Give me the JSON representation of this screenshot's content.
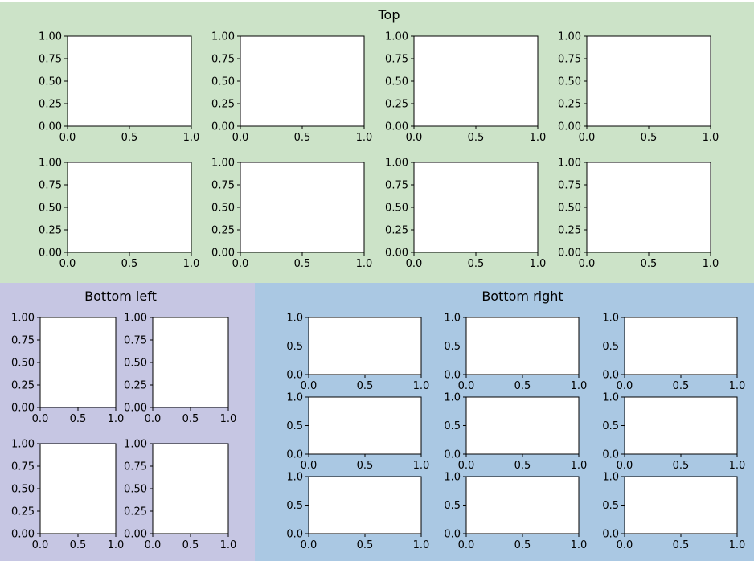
{
  "figure": {
    "subfigures": [
      {
        "name": "top",
        "title": "Top",
        "color": "#cce3c8",
        "rows": 2,
        "cols": 4
      },
      {
        "name": "bottom-left",
        "title": "Bottom left",
        "color": "#c6c6e3",
        "rows": 2,
        "cols": 2
      },
      {
        "name": "bottom-right",
        "title": "Bottom right",
        "color": "#aac8e3",
        "rows": 3,
        "cols": 3
      }
    ]
  },
  "chart_data": [
    {
      "type": "scatter",
      "subfigure": "Top",
      "rows": 2,
      "cols": 4,
      "series": [],
      "xlim": [
        0,
        1
      ],
      "ylim": [
        0,
        1
      ],
      "xticks": [
        "0.0",
        "0.5",
        "1.0"
      ],
      "yticks": [
        "0.00",
        "0.25",
        "0.50",
        "0.75",
        "1.00"
      ],
      "grid": false
    },
    {
      "type": "scatter",
      "subfigure": "Bottom left",
      "rows": 2,
      "cols": 2,
      "series": [],
      "xlim": [
        0,
        1
      ],
      "ylim": [
        0,
        1
      ],
      "xticks": [
        "0.0",
        "0.5",
        "1.0"
      ],
      "yticks": [
        "0.00",
        "0.25",
        "0.50",
        "0.75",
        "1.00"
      ],
      "grid": false
    },
    {
      "type": "scatter",
      "subfigure": "Bottom right",
      "rows": 3,
      "cols": 3,
      "series": [],
      "xlim": [
        0,
        1
      ],
      "ylim": [
        0,
        1
      ],
      "xticks": [
        "0.0",
        "0.5",
        "1.0"
      ],
      "yticks": [
        "0.0",
        "0.5",
        "1.0"
      ],
      "grid": false
    }
  ]
}
